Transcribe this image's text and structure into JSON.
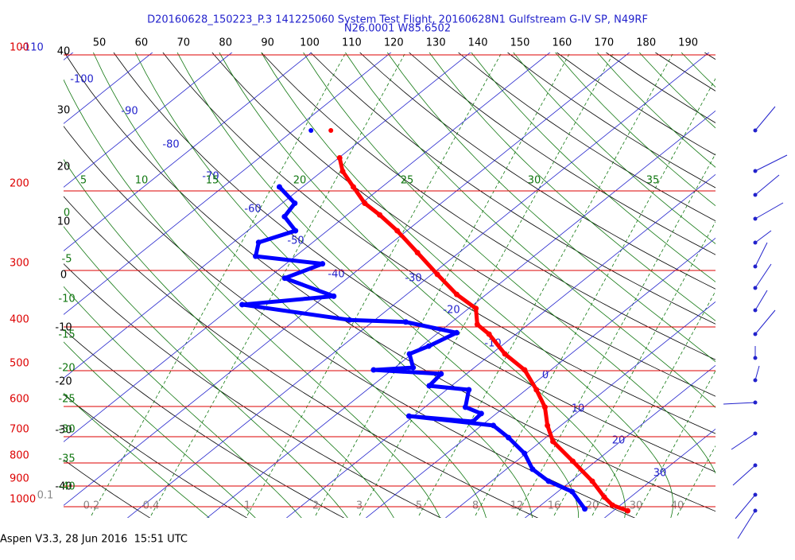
{
  "header": {
    "title": "D20160628_150223_P.3 141225060 System Test Flight, 20160628N1 Gulfstream G-IV SP, N49RF",
    "location": "N26.0001 W85.6502"
  },
  "footer": "Aspen V3.3, 28 Jun 2016  15:51 UTC",
  "pressure_ticks": [
    100,
    200,
    300,
    400,
    500,
    600,
    700,
    800,
    900,
    1000
  ],
  "top_ticks": [
    50,
    60,
    70,
    80,
    90,
    100,
    110,
    120,
    130,
    140,
    150,
    160,
    170,
    180,
    190
  ],
  "left_ticks": [
    40,
    30,
    20,
    10,
    0,
    -10,
    -20,
    -30,
    -40
  ],
  "isotherm_labels": [
    -110,
    -100,
    -90,
    -80,
    -70,
    -60,
    -50,
    -40,
    -30,
    -20,
    -10,
    0,
    10,
    20,
    30
  ],
  "theta_labels_left": [
    0,
    -5,
    -10,
    -15,
    -20,
    -25,
    -30,
    -35,
    -40
  ],
  "theta_labels_top": [
    5,
    10,
    15,
    20,
    25,
    30,
    35
  ],
  "mixing_ratio_labels": [
    0.1,
    0.2,
    0.4,
    1,
    2,
    3,
    5,
    8,
    12,
    16,
    20,
    30,
    40
  ],
  "sounding": {
    "temperature": {
      "color": "#ff0000",
      "p": [
        169,
        181,
        196,
        213,
        226,
        245,
        274,
        306,
        339,
        364,
        395,
        415,
        459,
        498,
        551,
        602,
        661,
        717,
        793,
        878,
        952,
        992,
        1021
      ],
      "t": [
        -59.9,
        -57.4,
        -53.6,
        -49.6,
        -45.9,
        -41.2,
        -35.2,
        -29.3,
        -23.7,
        -19.1,
        -16.4,
        -13.4,
        -8.3,
        -3.3,
        1.3,
        5.1,
        8.3,
        11.5,
        17.1,
        22.7,
        26.7,
        29.0,
        31.8
      ]
    },
    "dewpoint": {
      "color": "#0000ff",
      "p": [
        196,
        213,
        228,
        245,
        260,
        279,
        290,
        312,
        342,
        357,
        386,
        390,
        412,
        441,
        459,
        492,
        498,
        508,
        540,
        551,
        602,
        622,
        648,
        630,
        661,
        703,
        762,
        826,
        878,
        926,
        1011
      ],
      "t": [
        -62.9,
        -58.4,
        -57.6,
        -54.0,
        -56.8,
        -55.0,
        -45.4,
        -47.9,
        -38.9,
        -49.1,
        -33.2,
        -25.8,
        -17.7,
        -19.1,
        -20.3,
        -17.7,
        -22.3,
        -13.2,
        -12.8,
        -7.2,
        -4.9,
        -1.9,
        -1.7,
        -10.6,
        1.5,
        5.3,
        9.8,
        13.3,
        17.2,
        21.8,
        26.1
      ]
    },
    "launch": {
      "p": 147,
      "temperature": -65.3,
      "dewpoint": -67.8
    }
  }
}
